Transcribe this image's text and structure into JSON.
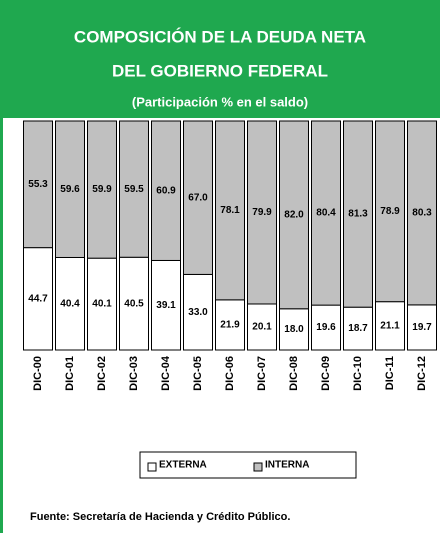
{
  "chart_data": {
    "type": "bar",
    "stacked": true,
    "title": [
      "COMPOSICIÓN DE LA DEUDA NETA",
      "DEL GOBIERNO FEDERAL"
    ],
    "subtitle": "(Participación % en el saldo)",
    "categories": [
      "DIC-00",
      "DIC-01",
      "DIC-02",
      "DIC-03",
      "DIC-04",
      "DIC-05",
      "DIC-06",
      "DIC-07",
      "DIC-08",
      "DIC-09",
      "DIC-10",
      "DIC-11",
      "DIC-12"
    ],
    "series": [
      {
        "name": "EXTERNA",
        "color": "#ffffff",
        "values": [
          44.7,
          40.4,
          40.1,
          40.5,
          39.1,
          33.0,
          21.9,
          20.1,
          18.0,
          19.6,
          18.7,
          21.1,
          19.7
        ],
        "value_labels": [
          "44.7",
          "40.4",
          "40.1",
          "40.5",
          "39.1",
          "33.0",
          "21.9",
          "20.1",
          "18.0",
          "19.6",
          "18.7",
          "21.1",
          "19.7"
        ]
      },
      {
        "name": "INTERNA",
        "color": "#c0c0c0",
        "values": [
          55.3,
          59.6,
          59.9,
          59.5,
          60.9,
          67.0,
          78.1,
          79.9,
          82.0,
          80.4,
          81.3,
          78.9,
          80.3
        ],
        "value_labels": [
          "55.3",
          "59.6",
          "59.9",
          "59.5",
          "60.9",
          "67.0",
          "78.1",
          "79.9",
          "82.0",
          "80.4",
          "81.3",
          "78.9",
          "80.3"
        ]
      }
    ],
    "ylim": [
      0,
      100
    ],
    "source": "Fuente: Secretaría de Hacienda y Crédito Público."
  }
}
